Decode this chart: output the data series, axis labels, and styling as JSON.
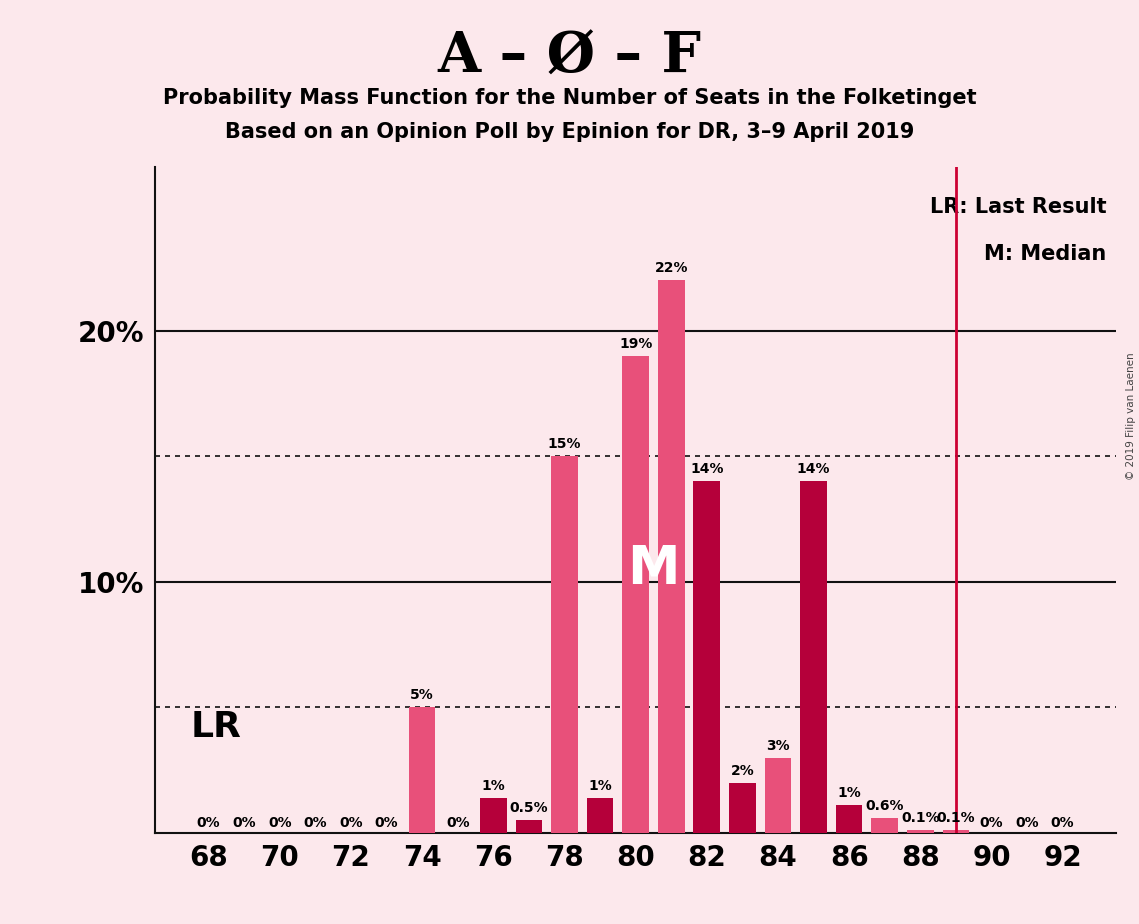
{
  "title_main": "A – Ø – F",
  "title_sub1": "Probability Mass Function for the Number of Seats in the Folketinget",
  "title_sub2": "Based on an Opinion Poll by Epinion for DR, 3–9 April 2019",
  "copyright": "© 2019 Filip van Laenen",
  "seats": [
    68,
    69,
    70,
    71,
    72,
    73,
    74,
    75,
    76,
    77,
    78,
    79,
    80,
    81,
    82,
    83,
    84,
    85,
    86,
    87,
    88,
    89,
    90,
    91,
    92
  ],
  "probabilities": [
    0.0,
    0.0,
    0.0,
    0.0,
    0.0,
    0.0,
    0.05,
    0.0,
    0.014,
    0.005,
    0.15,
    0.014,
    0.19,
    0.22,
    0.14,
    0.02,
    0.03,
    0.14,
    0.011,
    0.006,
    0.001,
    0.001,
    0.0,
    0.0,
    0.0
  ],
  "bar_colors": [
    "#e8507a",
    "#e8507a",
    "#e8507a",
    "#e8507a",
    "#e8507a",
    "#e8507a",
    "#e8507a",
    "#e8507a",
    "#b5003a",
    "#b5003a",
    "#e8507a",
    "#b5003a",
    "#e8507a",
    "#e8507a",
    "#b5003a",
    "#b5003a",
    "#e8507a",
    "#b5003a",
    "#b5003a",
    "#e8507a",
    "#e8507a",
    "#e8507a",
    "#e8507a",
    "#e8507a",
    "#e8507a"
  ],
  "median_seat": 81,
  "lr_seat": 89,
  "background_color": "#fce8ec",
  "bar_color_pink": "#e8507a",
  "bar_color_dark": "#b5003a",
  "lr_line_color": "#cc0033",
  "grid_color": "#111111",
  "ytick_labels": [
    "",
    "",
    "10%",
    "",
    "20%",
    ""
  ],
  "ytick_values": [
    0.0,
    0.05,
    0.1,
    0.15,
    0.2,
    0.25
  ],
  "ylim": [
    0,
    0.265
  ],
  "xlim": [
    66.5,
    93.5
  ]
}
